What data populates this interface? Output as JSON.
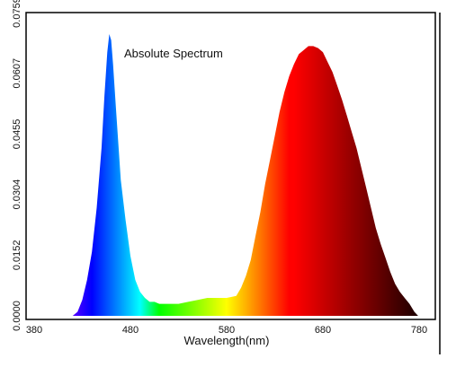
{
  "chart_data": {
    "type": "area",
    "title": "Absolute Spectrum",
    "xlabel": "Wavelength(nm)",
    "ylabel": "",
    "xlim": [
      380,
      780
    ],
    "ylim": [
      0,
      0.0759
    ],
    "x_ticks": [
      "380",
      "480",
      "580",
      "680",
      "780"
    ],
    "x_tick_values": [
      380,
      480,
      580,
      680,
      780
    ],
    "y_ticks": [
      "0.0000",
      "0.0152",
      "0.0304",
      "0.0455",
      "0.0607",
      "0.0759"
    ],
    "y_tick_values": [
      0,
      0.0152,
      0.0304,
      0.0455,
      0.0607,
      0.0759
    ],
    "grid": false,
    "fill": "wavelength-spectrum-colors",
    "series": [
      {
        "x": [
          380,
          420,
          425,
          430,
          435,
          440,
          445,
          450,
          453,
          456,
          458,
          460,
          462,
          465,
          468,
          470,
          475,
          480,
          485,
          490,
          495,
          500,
          505,
          510,
          520,
          530,
          540,
          550,
          560,
          570,
          580,
          590,
          595,
          600,
          605,
          610,
          615,
          620,
          625,
          630,
          635,
          640,
          645,
          650,
          655,
          660,
          665,
          670,
          675,
          680,
          685,
          690,
          695,
          700,
          705,
          710,
          715,
          720,
          725,
          730,
          735,
          740,
          745,
          750,
          755,
          760,
          765,
          770,
          775,
          779
        ],
        "y": [
          0,
          0,
          0.001,
          0.004,
          0.009,
          0.016,
          0.027,
          0.042,
          0.055,
          0.066,
          0.0705,
          0.069,
          0.063,
          0.052,
          0.041,
          0.034,
          0.024,
          0.015,
          0.009,
          0.006,
          0.0045,
          0.0035,
          0.0035,
          0.003,
          0.003,
          0.003,
          0.0035,
          0.004,
          0.0045,
          0.0045,
          0.0045,
          0.005,
          0.007,
          0.01,
          0.014,
          0.02,
          0.026,
          0.033,
          0.039,
          0.045,
          0.051,
          0.056,
          0.06,
          0.063,
          0.0655,
          0.0665,
          0.0675,
          0.0675,
          0.067,
          0.066,
          0.0635,
          0.061,
          0.0575,
          0.054,
          0.05,
          0.046,
          0.042,
          0.037,
          0.032,
          0.027,
          0.022,
          0.018,
          0.0145,
          0.011,
          0.008,
          0.006,
          0.0045,
          0.003,
          0.001,
          0
        ]
      }
    ]
  }
}
